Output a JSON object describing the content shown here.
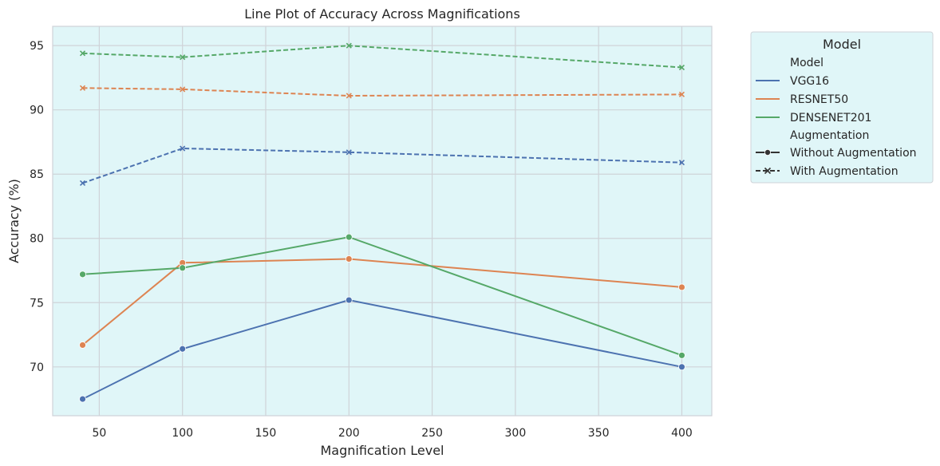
{
  "chart_data": {
    "type": "line",
    "title": "Line Plot of Accuracy Across Magnifications",
    "xlabel": "Magnification Level",
    "ylabel": "Accuracy (%)",
    "xlim": [
      22,
      418
    ],
    "ylim": [
      66.2,
      96.5
    ],
    "xticks": [
      50,
      100,
      150,
      200,
      250,
      300,
      350,
      400
    ],
    "yticks": [
      70,
      75,
      80,
      85,
      90,
      95
    ],
    "grid": true,
    "background_color": "#e0f6f8",
    "grid_color": "#cfd3d8",
    "legend": {
      "title": "Model",
      "placement": "outside-top-right",
      "hue_title": "Model",
      "style_title": "Augmentation",
      "style_entries": [
        "Without Augmentation",
        "With Augmentation"
      ]
    },
    "series": [
      {
        "name": "VGG16",
        "augmentation": "Without Augmentation",
        "color": "#4c72b0",
        "dashed": false,
        "marker": "circle",
        "x": [
          40,
          100,
          200,
          400
        ],
        "y": [
          67.5,
          71.4,
          75.2,
          70.0
        ]
      },
      {
        "name": "RESNET50",
        "augmentation": "Without Augmentation",
        "color": "#dd8452",
        "dashed": false,
        "marker": "circle",
        "x": [
          40,
          100,
          200,
          400
        ],
        "y": [
          71.7,
          78.1,
          78.4,
          76.2
        ]
      },
      {
        "name": "DENSENET201",
        "augmentation": "Without Augmentation",
        "color": "#55a868",
        "dashed": false,
        "marker": "circle",
        "x": [
          40,
          100,
          200,
          400
        ],
        "y": [
          77.2,
          77.7,
          80.1,
          70.9
        ]
      },
      {
        "name": "VGG16",
        "augmentation": "With Augmentation",
        "color": "#4c72b0",
        "dashed": true,
        "marker": "x",
        "x": [
          40,
          100,
          200,
          400
        ],
        "y": [
          84.3,
          87.0,
          86.7,
          85.9
        ]
      },
      {
        "name": "RESNET50",
        "augmentation": "With Augmentation",
        "color": "#dd8452",
        "dashed": true,
        "marker": "x",
        "x": [
          40,
          100,
          200,
          400
        ],
        "y": [
          91.7,
          91.6,
          91.1,
          91.2
        ]
      },
      {
        "name": "DENSENET201",
        "augmentation": "With Augmentation",
        "color": "#55a868",
        "dashed": true,
        "marker": "x",
        "x": [
          40,
          100,
          200,
          400
        ],
        "y": [
          94.4,
          94.1,
          95.0,
          93.3
        ]
      }
    ],
    "models": [
      {
        "name": "VGG16",
        "color": "#4c72b0"
      },
      {
        "name": "RESNET50",
        "color": "#dd8452"
      },
      {
        "name": "DENSENET201",
        "color": "#55a868"
      }
    ]
  }
}
